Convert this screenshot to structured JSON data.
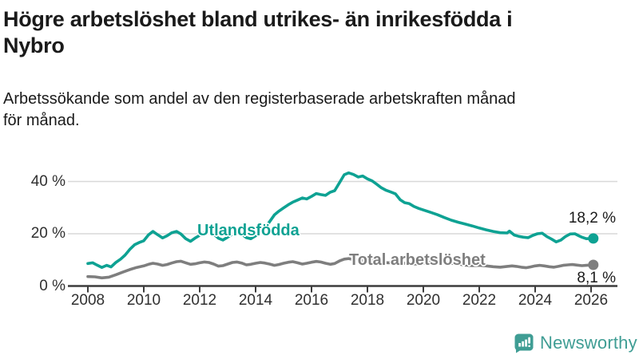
{
  "header": {
    "title_lines": [
      "Högre arbetslöshet bland utrikes- än inrikesfödda i",
      "Nybro"
    ],
    "subtitle_lines": [
      "Arbetssökande som andel av den registerbaserade arbetskraften månad",
      "för månad."
    ]
  },
  "footer": {
    "brand": "Newsworthy",
    "logo_icon": "newsworthy-bar-chart-speech-bubble"
  },
  "colors": {
    "series_foreign_born": "#0ea293",
    "series_total": "#7e7e7e",
    "gridline": "#d8d8d8",
    "axis": "#3c3c3c",
    "text": "#1a1a1a",
    "brand": "#3f9d94"
  },
  "chart_data": {
    "type": "line",
    "title": "Högre arbetslöshet bland utrikes- än inrikesfödda i Nybro",
    "subtitle": "Arbetssökande som andel av den registerbaserade arbetskraften månad för månad.",
    "xlabel": "",
    "ylabel": "",
    "x_axis": {
      "unit": "year",
      "ticks": [
        2008,
        2010,
        2012,
        2014,
        2016,
        2018,
        2020,
        2022,
        2024,
        2026
      ],
      "range": [
        2007.3,
        2026.9
      ]
    },
    "y_axis": {
      "unit": "%",
      "ticks": [
        0,
        20,
        40
      ],
      "tick_labels": [
        "0 %",
        "20 %",
        "40 %"
      ],
      "range": [
        0,
        45
      ],
      "grid": true
    },
    "legend_position": "inline-labels",
    "series": [
      {
        "name": "Utlandsfödda",
        "color": "#0ea293",
        "end_label": "18,2 %",
        "end_value": 18.2,
        "points": [
          [
            2008.0,
            8.6
          ],
          [
            2008.17,
            8.9
          ],
          [
            2008.33,
            8.0
          ],
          [
            2008.5,
            7.1
          ],
          [
            2008.67,
            7.9
          ],
          [
            2008.83,
            7.3
          ],
          [
            2009.0,
            9.0
          ],
          [
            2009.17,
            10.3
          ],
          [
            2009.33,
            11.8
          ],
          [
            2009.5,
            14.0
          ],
          [
            2009.67,
            15.8
          ],
          [
            2009.83,
            16.6
          ],
          [
            2010.0,
            17.3
          ],
          [
            2010.17,
            19.6
          ],
          [
            2010.33,
            20.9
          ],
          [
            2010.5,
            19.6
          ],
          [
            2010.67,
            18.4
          ],
          [
            2010.83,
            19.2
          ],
          [
            2011.0,
            20.4
          ],
          [
            2011.17,
            20.9
          ],
          [
            2011.33,
            19.9
          ],
          [
            2011.5,
            18.1
          ],
          [
            2011.67,
            17.1
          ],
          [
            2011.83,
            18.3
          ],
          [
            2012.0,
            19.4
          ],
          [
            2012.17,
            20.4
          ],
          [
            2012.33,
            20.9
          ],
          [
            2012.5,
            19.9
          ],
          [
            2012.67,
            18.3
          ],
          [
            2012.83,
            17.6
          ],
          [
            2013.0,
            18.7
          ],
          [
            2013.17,
            20.0
          ],
          [
            2013.33,
            20.7
          ],
          [
            2013.5,
            19.9
          ],
          [
            2013.67,
            18.5
          ],
          [
            2013.83,
            18.1
          ],
          [
            2014.0,
            19.2
          ],
          [
            2014.17,
            20.6
          ],
          [
            2014.33,
            22.0
          ],
          [
            2014.5,
            24.6
          ],
          [
            2014.67,
            27.2
          ],
          [
            2014.83,
            28.6
          ],
          [
            2015.0,
            29.9
          ],
          [
            2015.17,
            31.1
          ],
          [
            2015.33,
            32.1
          ],
          [
            2015.5,
            32.9
          ],
          [
            2015.67,
            33.7
          ],
          [
            2015.83,
            33.3
          ],
          [
            2016.0,
            34.3
          ],
          [
            2016.17,
            35.4
          ],
          [
            2016.33,
            35.0
          ],
          [
            2016.5,
            34.7
          ],
          [
            2016.67,
            35.9
          ],
          [
            2016.83,
            36.5
          ],
          [
            2017.0,
            39.5
          ],
          [
            2017.17,
            42.6
          ],
          [
            2017.33,
            43.3
          ],
          [
            2017.5,
            42.7
          ],
          [
            2017.67,
            41.7
          ],
          [
            2017.83,
            42.1
          ],
          [
            2018.0,
            41.0
          ],
          [
            2018.17,
            40.2
          ],
          [
            2018.33,
            39.0
          ],
          [
            2018.5,
            37.6
          ],
          [
            2018.67,
            36.6
          ],
          [
            2018.83,
            36.0
          ],
          [
            2019.0,
            35.3
          ],
          [
            2019.17,
            33.0
          ],
          [
            2019.33,
            31.9
          ],
          [
            2019.5,
            31.5
          ],
          [
            2019.67,
            30.4
          ],
          [
            2019.83,
            29.7
          ],
          [
            2020.0,
            29.1
          ],
          [
            2020.25,
            28.2
          ],
          [
            2020.5,
            27.3
          ],
          [
            2020.75,
            26.2
          ],
          [
            2021.0,
            25.2
          ],
          [
            2021.25,
            24.4
          ],
          [
            2021.5,
            23.7
          ],
          [
            2021.75,
            23.0
          ],
          [
            2022.0,
            22.2
          ],
          [
            2022.25,
            21.5
          ],
          [
            2022.5,
            20.9
          ],
          [
            2022.75,
            20.4
          ],
          [
            2023.0,
            20.3
          ],
          [
            2023.08,
            21.0
          ],
          [
            2023.25,
            19.5
          ],
          [
            2023.42,
            19.0
          ],
          [
            2023.58,
            18.7
          ],
          [
            2023.75,
            18.5
          ],
          [
            2023.92,
            19.4
          ],
          [
            2024.08,
            20.0
          ],
          [
            2024.25,
            20.2
          ],
          [
            2024.42,
            18.9
          ],
          [
            2024.58,
            18.0
          ],
          [
            2024.75,
            16.9
          ],
          [
            2024.92,
            17.6
          ],
          [
            2025.08,
            18.9
          ],
          [
            2025.25,
            19.9
          ],
          [
            2025.42,
            20.0
          ],
          [
            2025.58,
            19.1
          ],
          [
            2025.67,
            18.7
          ],
          [
            2025.83,
            18.1
          ],
          [
            2026.08,
            18.2
          ]
        ]
      },
      {
        "name": "Total arbetslöshet",
        "color": "#7e7e7e",
        "end_label": "8,1 %",
        "end_value": 8.1,
        "points": [
          [
            2008.0,
            3.6
          ],
          [
            2008.25,
            3.5
          ],
          [
            2008.5,
            3.1
          ],
          [
            2008.75,
            3.4
          ],
          [
            2009.0,
            4.3
          ],
          [
            2009.25,
            5.3
          ],
          [
            2009.5,
            6.3
          ],
          [
            2009.75,
            7.1
          ],
          [
            2010.0,
            7.7
          ],
          [
            2010.17,
            8.3
          ],
          [
            2010.33,
            8.7
          ],
          [
            2010.5,
            8.4
          ],
          [
            2010.67,
            7.9
          ],
          [
            2010.83,
            8.2
          ],
          [
            2011.0,
            8.8
          ],
          [
            2011.17,
            9.3
          ],
          [
            2011.33,
            9.5
          ],
          [
            2011.5,
            8.9
          ],
          [
            2011.67,
            8.3
          ],
          [
            2011.83,
            8.5
          ],
          [
            2012.0,
            8.9
          ],
          [
            2012.17,
            9.2
          ],
          [
            2012.33,
            9.0
          ],
          [
            2012.5,
            8.4
          ],
          [
            2012.67,
            7.6
          ],
          [
            2012.83,
            7.8
          ],
          [
            2013.0,
            8.4
          ],
          [
            2013.17,
            9.0
          ],
          [
            2013.33,
            9.2
          ],
          [
            2013.5,
            8.8
          ],
          [
            2013.67,
            8.1
          ],
          [
            2013.83,
            8.3
          ],
          [
            2014.0,
            8.7
          ],
          [
            2014.17,
            9.0
          ],
          [
            2014.33,
            8.8
          ],
          [
            2014.5,
            8.4
          ],
          [
            2014.67,
            7.9
          ],
          [
            2014.83,
            8.2
          ],
          [
            2015.0,
            8.7
          ],
          [
            2015.17,
            9.1
          ],
          [
            2015.33,
            9.3
          ],
          [
            2015.5,
            8.9
          ],
          [
            2015.67,
            8.4
          ],
          [
            2015.83,
            8.7
          ],
          [
            2016.0,
            9.1
          ],
          [
            2016.17,
            9.4
          ],
          [
            2016.33,
            9.2
          ],
          [
            2016.5,
            8.7
          ],
          [
            2016.67,
            8.3
          ],
          [
            2016.83,
            8.6
          ],
          [
            2017.0,
            9.6
          ],
          [
            2017.17,
            10.3
          ],
          [
            2017.33,
            10.5
          ],
          [
            2017.5,
            10.1
          ],
          [
            2017.75,
            9.7
          ],
          [
            2018.0,
            9.9
          ],
          [
            2018.25,
            9.5
          ],
          [
            2018.5,
            9.1
          ],
          [
            2018.75,
            8.9
          ],
          [
            2019.0,
            9.1
          ],
          [
            2019.25,
            8.8
          ],
          [
            2019.5,
            8.5
          ],
          [
            2019.75,
            8.4
          ],
          [
            2020.0,
            8.7
          ],
          [
            2020.25,
            9.1
          ],
          [
            2020.5,
            9.3
          ],
          [
            2020.75,
            8.9
          ],
          [
            2021.0,
            8.7
          ],
          [
            2021.25,
            8.4
          ],
          [
            2021.5,
            8.0
          ],
          [
            2021.75,
            7.8
          ],
          [
            2022.0,
            7.9
          ],
          [
            2022.25,
            7.7
          ],
          [
            2022.5,
            7.4
          ],
          [
            2022.75,
            7.2
          ],
          [
            2023.0,
            7.5
          ],
          [
            2023.17,
            7.7
          ],
          [
            2023.33,
            7.5
          ],
          [
            2023.5,
            7.2
          ],
          [
            2023.67,
            7.0
          ],
          [
            2023.83,
            7.3
          ],
          [
            2024.0,
            7.7
          ],
          [
            2024.17,
            7.9
          ],
          [
            2024.33,
            7.7
          ],
          [
            2024.5,
            7.4
          ],
          [
            2024.67,
            7.2
          ],
          [
            2024.83,
            7.5
          ],
          [
            2025.0,
            7.9
          ],
          [
            2025.17,
            8.1
          ],
          [
            2025.33,
            8.2
          ],
          [
            2025.5,
            8.0
          ],
          [
            2025.67,
            7.8
          ],
          [
            2025.83,
            7.9
          ],
          [
            2026.08,
            8.1
          ]
        ]
      }
    ]
  }
}
